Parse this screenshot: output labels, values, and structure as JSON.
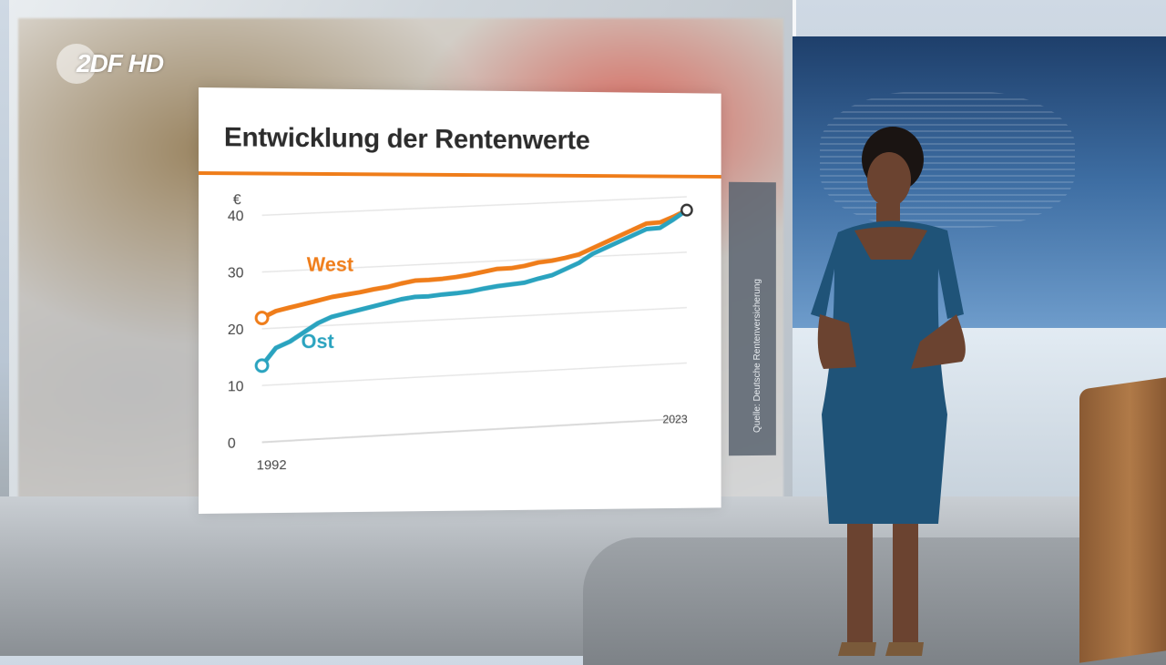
{
  "logo": {
    "text": "2DF HD",
    "name": "zdf-hd-logo"
  },
  "chart_data": {
    "type": "line",
    "title": "Entwicklung der Rentenwerte",
    "ylabel": "€",
    "ylim": [
      0,
      40
    ],
    "yticks": [
      0,
      10,
      20,
      30,
      40
    ],
    "x_start_label": "1992",
    "x_end_label": "2023",
    "series": [
      {
        "name": "West",
        "color": "#ef7d1a",
        "x": [
          1992,
          1993,
          1994,
          1995,
          1996,
          1997,
          1998,
          1999,
          2000,
          2001,
          2002,
          2003,
          2004,
          2005,
          2006,
          2007,
          2008,
          2009,
          2010,
          2011,
          2012,
          2013,
          2014,
          2015,
          2016,
          2017,
          2018,
          2019,
          2020,
          2021,
          2022,
          2023
        ],
        "values": [
          21.9,
          23.0,
          23.5,
          24.0,
          24.5,
          25.0,
          25.3,
          25.6,
          26.0,
          26.3,
          26.8,
          27.2,
          27.2,
          27.3,
          27.5,
          27.8,
          28.2,
          28.6,
          28.6,
          28.9,
          29.4,
          29.6,
          30.0,
          30.5,
          31.5,
          32.5,
          33.5,
          34.5,
          35.5,
          35.6,
          36.5,
          37.6
        ]
      },
      {
        "name": "Ost",
        "color": "#2aa3bf",
        "x": [
          1992,
          1993,
          1994,
          1995,
          1996,
          1997,
          1998,
          1999,
          2000,
          2001,
          2002,
          2003,
          2004,
          2005,
          2006,
          2007,
          2008,
          2009,
          2010,
          2011,
          2012,
          2013,
          2014,
          2015,
          2016,
          2017,
          2018,
          2019,
          2020,
          2021,
          2022,
          2023
        ],
        "values": [
          13.5,
          16.5,
          17.5,
          19.0,
          20.5,
          21.5,
          22.0,
          22.5,
          23.0,
          23.5,
          24.0,
          24.3,
          24.3,
          24.5,
          24.6,
          24.8,
          25.2,
          25.5,
          25.7,
          25.9,
          26.5,
          27.0,
          28.0,
          29.0,
          30.5,
          31.5,
          32.5,
          33.5,
          34.5,
          34.6,
          36.0,
          37.6
        ]
      }
    ]
  },
  "source_note": "Quelle: Deutsche Rentenversicherung"
}
